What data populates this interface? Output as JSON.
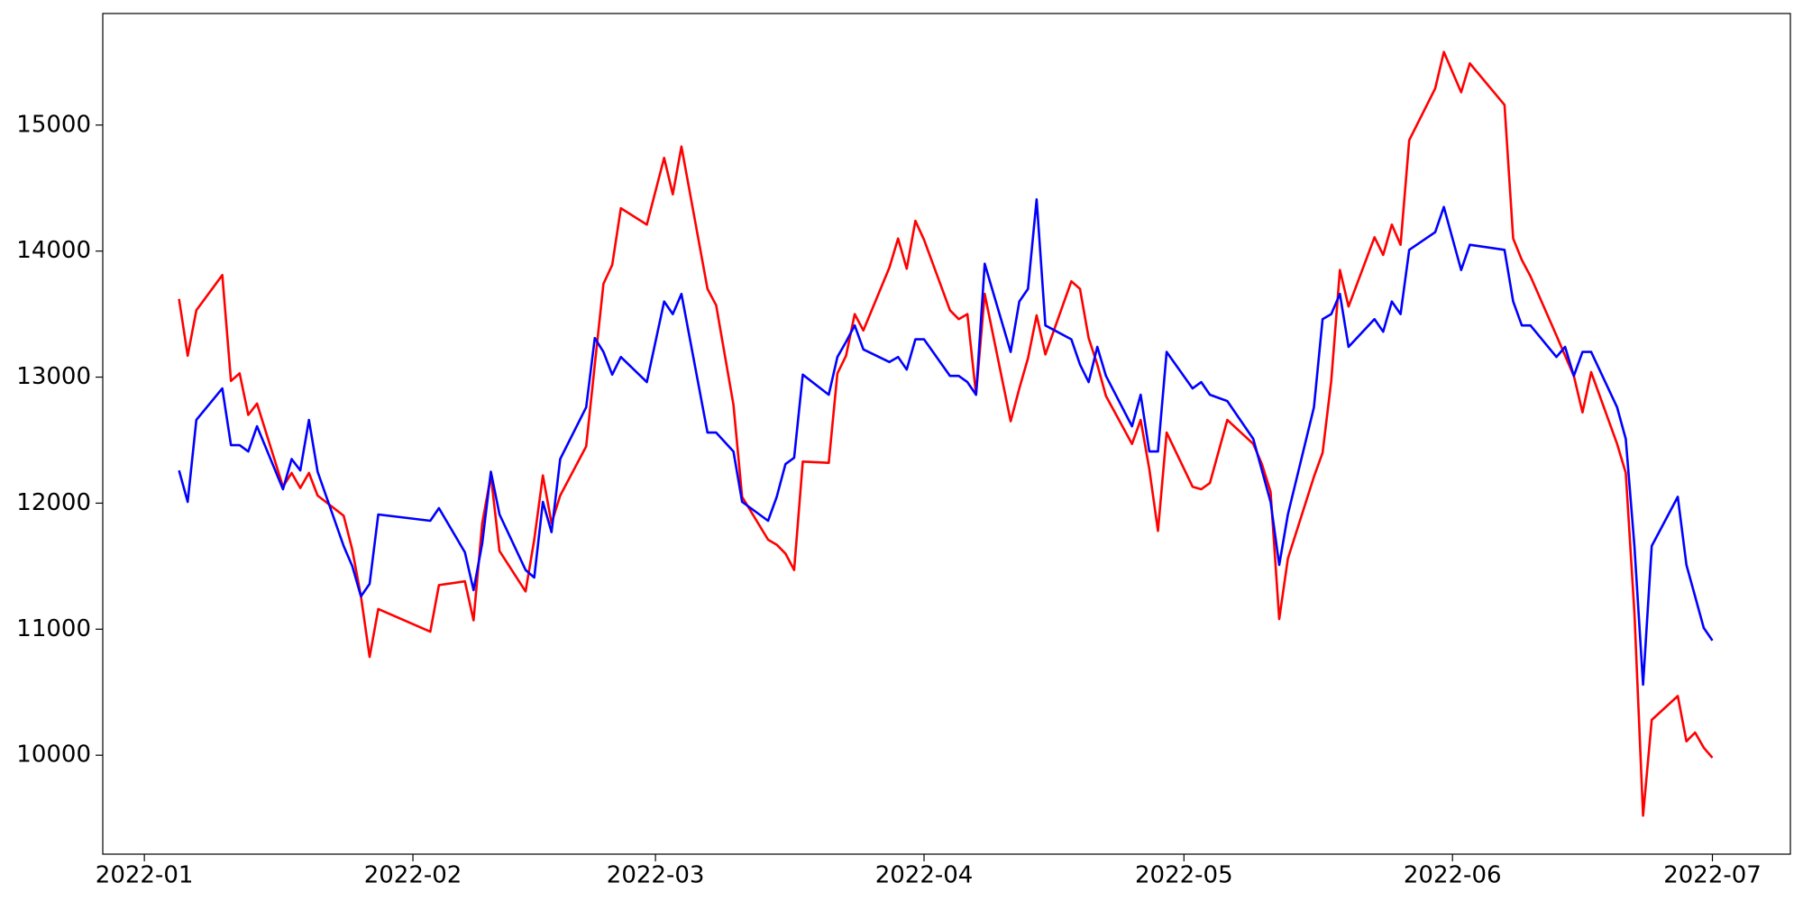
{
  "chart_data": {
    "type": "line",
    "x": [
      18997,
      18998,
      18999,
      19002,
      19003,
      19004,
      19005,
      19006,
      19009,
      19010,
      19011,
      19012,
      19013,
      19016,
      19017,
      19018,
      19019,
      19020,
      19026,
      19027,
      19030,
      19031,
      19032,
      19033,
      19034,
      19037,
      19038,
      19039,
      19040,
      19041,
      19044,
      19045,
      19046,
      19047,
      19048,
      19051,
      19053,
      19054,
      19055,
      19058,
      19059,
      19061,
      19062,
      19065,
      19066,
      19067,
      19068,
      19069,
      19072,
      19073,
      19074,
      19075,
      19076,
      19079,
      19080,
      19081,
      19082,
      19083,
      19086,
      19087,
      19088,
      19089,
      19090,
      19093,
      19094,
      19095,
      19096,
      19097,
      19100,
      19101,
      19102,
      19103,
      19104,
      19107,
      19108,
      19109,
      19110,
      19111,
      19114,
      19115,
      19116,
      19118,
      19121,
      19122,
      19123,
      19124,
      19125,
      19128,
      19129,
      19130,
      19131,
      19132,
      19135,
      19136,
      19137,
      19138,
      19139,
      19142,
      19143,
      19145,
      19146,
      19150,
      19151,
      19152,
      19153,
      19156,
      19157,
      19158,
      19159,
      19160,
      19163,
      19164,
      19165,
      19166,
      19167,
      19170,
      19171,
      19172,
      19173,
      19174
    ],
    "series": [
      {
        "color": "red",
        "values": [
          13620,
          13170,
          13530,
          13810,
          12970,
          13030,
          12700,
          12790,
          12130,
          12240,
          12120,
          12240,
          12060,
          11900,
          11630,
          11260,
          10780,
          11160,
          10980,
          11350,
          11380,
          11070,
          11840,
          12220,
          11620,
          11300,
          11710,
          12220,
          11840,
          12060,
          12450,
          13100,
          13740,
          13890,
          14340,
          14210,
          14740,
          14450,
          14830,
          13700,
          13570,
          12780,
          12050,
          11710,
          11670,
          11600,
          11470,
          12330,
          12320,
          13030,
          13170,
          13500,
          13370,
          13870,
          14100,
          13860,
          14240,
          14090,
          13530,
          13460,
          13500,
          12860,
          13660,
          12650,
          12910,
          13150,
          13490,
          13180,
          13760,
          13700,
          13310,
          13100,
          12850,
          12470,
          12660,
          12270,
          11780,
          12560,
          12130,
          12110,
          12160,
          12660,
          12470,
          12310,
          12090,
          11080,
          11560,
          12210,
          12400,
          12970,
          13850,
          13560,
          14110,
          13970,
          14210,
          14050,
          14880,
          15290,
          15580,
          15260,
          15490,
          15160,
          14100,
          13930,
          13800,
          13330,
          13170,
          13010,
          12720,
          13040,
          12470,
          12240,
          11130,
          9520,
          10280,
          10470,
          10110,
          10180,
          10060,
          9980
        ]
      },
      {
        "color": "blue",
        "values": [
          12260,
          12010,
          12660,
          12910,
          12460,
          12460,
          12410,
          12610,
          12110,
          12350,
          12260,
          12660,
          12250,
          11660,
          11500,
          11260,
          11360,
          11910,
          11860,
          11960,
          11610,
          11310,
          11680,
          12250,
          11910,
          11470,
          11410,
          12010,
          11770,
          12350,
          12760,
          13310,
          13200,
          13020,
          13160,
          12960,
          13600,
          13500,
          13660,
          12560,
          12560,
          12410,
          12010,
          11860,
          12050,
          12310,
          12360,
          13020,
          12860,
          13160,
          13280,
          13410,
          13220,
          13120,
          13160,
          13060,
          13300,
          13300,
          13010,
          13010,
          12960,
          12860,
          13900,
          13200,
          13600,
          13700,
          14410,
          13410,
          13300,
          13100,
          12960,
          13240,
          13010,
          12610,
          12860,
          12410,
          12410,
          13200,
          12910,
          12960,
          12860,
          12810,
          12510,
          12260,
          12010,
          11510,
          11910,
          12760,
          13460,
          13500,
          13660,
          13240,
          13460,
          13360,
          13600,
          13500,
          14010,
          14150,
          14350,
          13850,
          14050,
          14010,
          13600,
          13410,
          13410,
          13160,
          13240,
          13010,
          13200,
          13200,
          12760,
          12510,
          11660,
          10560,
          11660,
          12050,
          11510,
          11260,
          11010,
          10910
        ]
      }
    ],
    "xlim": [
      18988.2,
      19183.0
    ],
    "xticks": [
      {
        "value": 18993,
        "label": "2022-01"
      },
      {
        "value": 19024,
        "label": "2022-02"
      },
      {
        "value": 19052,
        "label": "2022-03"
      },
      {
        "value": 19083,
        "label": "2022-04"
      },
      {
        "value": 19113,
        "label": "2022-05"
      },
      {
        "value": 19144,
        "label": "2022-06"
      },
      {
        "value": 19174,
        "label": "2022-07"
      }
    ],
    "ylim": [
      9215,
      15885
    ],
    "yticks": [
      10000,
      11000,
      12000,
      13000,
      14000,
      15000
    ],
    "grid": false
  }
}
